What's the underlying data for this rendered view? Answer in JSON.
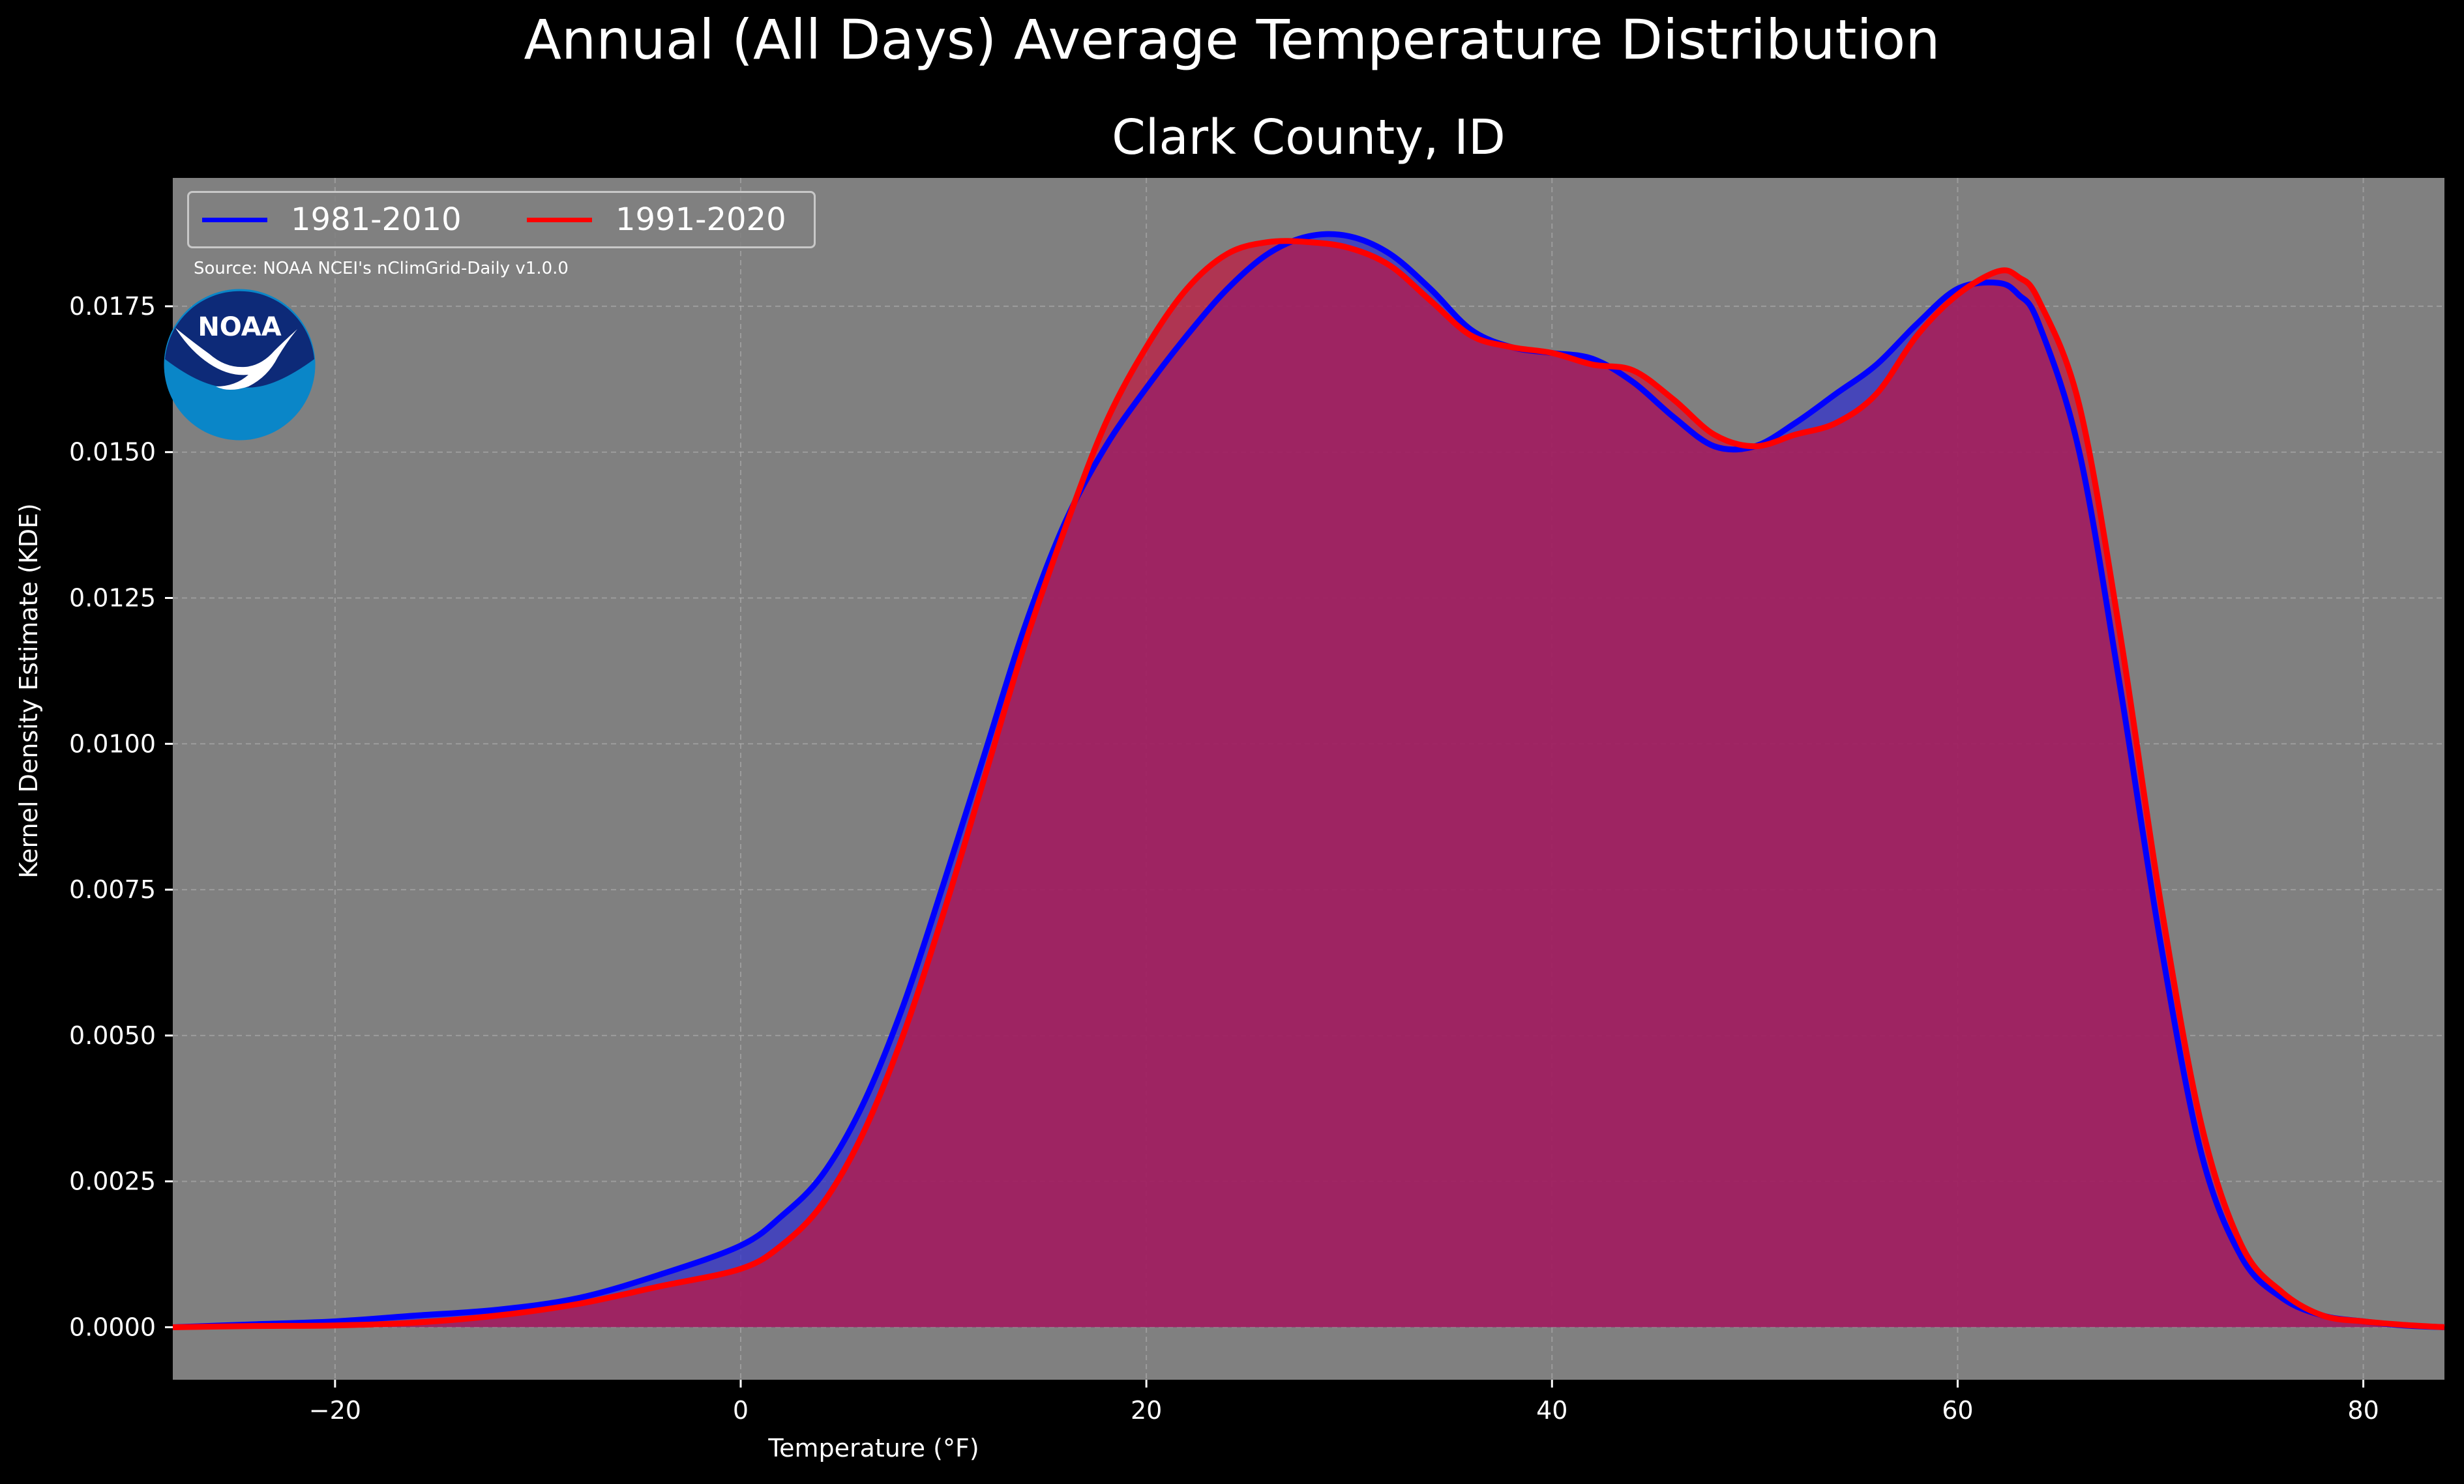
{
  "figure": {
    "suptitle": "Annual (All Days) Average Temperature Distribution",
    "subtitle": "Clark County, ID",
    "source": "Source: NOAA NCEI's nClimGrid-Daily v1.0.0",
    "logo_text": "NOAA",
    "colors": {
      "background": "#000000",
      "plot_background": "#808080",
      "series_1981_2010": "#0000ff",
      "series_1991_2020": "#ff0000",
      "fill_1981_2010": "#3333cc",
      "fill_1991_2020": "#c01840"
    }
  },
  "legend": {
    "items": [
      {
        "label": "1981-2010",
        "color": "#0000ff"
      },
      {
        "label": "1991-2020",
        "color": "#ff0000"
      }
    ],
    "placement": "top-left"
  },
  "chart_data": {
    "type": "area",
    "title": "Clark County, ID",
    "xlabel": "Temperature (°F)",
    "ylabel": "Kernel Density Estimate (KDE)",
    "xlim": [
      -28,
      84
    ],
    "ylim": [
      -0.0009,
      0.0197
    ],
    "grid": true,
    "xticks": [
      -20,
      0,
      20,
      40,
      60,
      80
    ],
    "xtick_labels": [
      "−20",
      "0",
      "20",
      "40",
      "60",
      "80"
    ],
    "yticks": [
      0,
      0.0025,
      0.005,
      0.0075,
      0.01,
      0.0125,
      0.015,
      0.0175
    ],
    "ytick_labels": [
      "0.0000",
      "0.0025",
      "0.0050",
      "0.0075",
      "0.0100",
      "0.0125",
      "0.0150",
      "0.0175"
    ],
    "x": [
      -28,
      -24,
      -20,
      -16,
      -12,
      -8,
      -4,
      0,
      2,
      4,
      6,
      8,
      10,
      12,
      14,
      16,
      18,
      20,
      22,
      24,
      26,
      28,
      30,
      32,
      34,
      36,
      38,
      40,
      42,
      44,
      46,
      48,
      50,
      52,
      54,
      56,
      58,
      60,
      62,
      63,
      64,
      66,
      68,
      70,
      72,
      74,
      76,
      78,
      80,
      82,
      84
    ],
    "series": [
      {
        "name": "1981-2010",
        "color": "#0000ff",
        "values": [
          0.0,
          5e-05,
          0.0001,
          0.0002,
          0.0003,
          0.0005,
          0.0009,
          0.0014,
          0.0019,
          0.0026,
          0.0038,
          0.0055,
          0.0076,
          0.0098,
          0.012,
          0.0138,
          0.0151,
          0.0161,
          0.017,
          0.0178,
          0.0184,
          0.0187,
          0.0187,
          0.0184,
          0.0178,
          0.0171,
          0.0168,
          0.0167,
          0.0166,
          0.0162,
          0.0156,
          0.0151,
          0.0151,
          0.0155,
          0.016,
          0.0165,
          0.0172,
          0.0178,
          0.0179,
          0.0177,
          0.0172,
          0.015,
          0.011,
          0.0066,
          0.003,
          0.0012,
          0.0005,
          0.0002,
          0.0001,
          3e-05,
          0.0
        ]
      },
      {
        "name": "1991-2020",
        "color": "#ff0000",
        "values": [
          0.0,
          2e-05,
          3e-05,
          8e-05,
          0.0002,
          0.0004,
          0.0007,
          0.001,
          0.0014,
          0.0021,
          0.0033,
          0.005,
          0.0071,
          0.0094,
          0.0117,
          0.0137,
          0.0155,
          0.0168,
          0.0178,
          0.0184,
          0.0186,
          0.0186,
          0.0185,
          0.0182,
          0.0176,
          0.017,
          0.0168,
          0.0167,
          0.0165,
          0.0164,
          0.0159,
          0.0153,
          0.0151,
          0.0153,
          0.0155,
          0.016,
          0.017,
          0.0177,
          0.0181,
          0.018,
          0.0176,
          0.0158,
          0.0119,
          0.0073,
          0.0035,
          0.0014,
          0.0006,
          0.0002,
          0.0001,
          4e-05,
          0.0
        ]
      }
    ]
  }
}
